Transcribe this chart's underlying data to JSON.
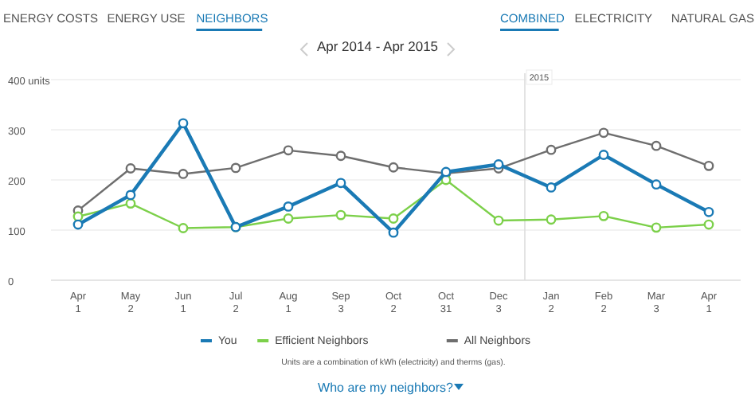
{
  "chart_data": {
    "type": "line",
    "title": "Apr 2014 - Apr 2015",
    "categories": [
      "Apr\n1",
      "May\n2",
      "Jun\n1",
      "Jul\n2",
      "Aug\n1",
      "Sep\n3",
      "Oct\n2",
      "Oct\n31",
      "Dec\n3",
      "Jan\n2",
      "Feb\n2",
      "Mar\n3",
      "Apr\n1"
    ],
    "series": [
      {
        "name": "You",
        "color": "#1a7ab5",
        "values": [
          111,
          170,
          313,
          106,
          147,
          194,
          95,
          216,
          231,
          185,
          250,
          191,
          136
        ]
      },
      {
        "name": "Efficient Neighbors",
        "color": "#7cd04a",
        "values": [
          127,
          153,
          104,
          106,
          123,
          130,
          123,
          200,
          119,
          121,
          128,
          105,
          111
        ]
      },
      {
        "name": "All Neighbors",
        "color": "#6e6e6e",
        "values": [
          139,
          223,
          212,
          224,
          259,
          248,
          225,
          213,
          223,
          260,
          294,
          268,
          228
        ]
      }
    ],
    "ylim": [
      0,
      400
    ],
    "yticks": [
      0,
      100,
      200,
      300,
      {
        "value": 400,
        "label": "400 units"
      }
    ],
    "grid": "y",
    "legend": "bottom",
    "marker": "circle",
    "line_style": "solid",
    "annotations": [
      "ENERGY COSTS",
      "ENERGY USE",
      "NEIGHBORS",
      "COMBINED",
      "ELECTRICITY",
      "NATURAL GAS",
      "Units are a combination of kWh (electricity) and therms (gas).",
      "Who are my neighbors?"
    ],
    "ref_lines": [
      {
        "axis": "x",
        "value": "Jan\n2",
        "label": "2015"
      }
    ]
  }
}
